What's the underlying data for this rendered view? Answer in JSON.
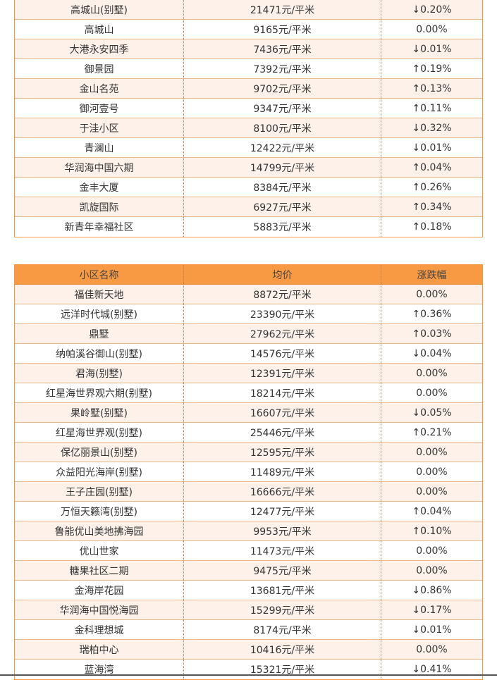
{
  "table1": {
    "rows": [
      {
        "name": "高城山(别墅)",
        "price": "21471元/平米",
        "change": "↓0.20%"
      },
      {
        "name": "高城山",
        "price": "9165元/平米",
        "change": "0.00%"
      },
      {
        "name": "大港永安四季",
        "price": "7436元/平米",
        "change": "↓0.01%"
      },
      {
        "name": "御景园",
        "price": "7392元/平米",
        "change": "↑0.19%"
      },
      {
        "name": "金山名苑",
        "price": "9702元/平米",
        "change": "↑0.13%"
      },
      {
        "name": "御河壹号",
        "price": "9347元/平米",
        "change": "↑0.11%"
      },
      {
        "name": "于洼小区",
        "price": "8100元/平米",
        "change": "↓0.32%"
      },
      {
        "name": "青澜山",
        "price": "12422元/平米",
        "change": "↓0.01%"
      },
      {
        "name": "华润海中国六期",
        "price": "14799元/平米",
        "change": "↑0.04%"
      },
      {
        "name": "金丰大厦",
        "price": "8384元/平米",
        "change": "↑0.26%"
      },
      {
        "name": "凯旋国际",
        "price": "6927元/平米",
        "change": "↑0.34%"
      },
      {
        "name": "新青年幸福社区",
        "price": "5883元/平米",
        "change": "↑0.18%"
      }
    ]
  },
  "table2": {
    "headers": {
      "name": "小区名称",
      "price": "均价",
      "change": "涨跌幅"
    },
    "rows": [
      {
        "name": "福佳新天地",
        "price": "8872元/平米",
        "change": "0.00%"
      },
      {
        "name": "远洋时代城(别墅)",
        "price": "23390元/平米",
        "change": "↑0.36%"
      },
      {
        "name": "鼎墅",
        "price": "27962元/平米",
        "change": "↑0.03%"
      },
      {
        "name": "纳帕溪谷御山(别墅)",
        "price": "14576元/平米",
        "change": "↓0.04%"
      },
      {
        "name": "君海(别墅)",
        "price": "12391元/平米",
        "change": "0.00%"
      },
      {
        "name": "红星海世界观六期(别墅)",
        "price": "18214元/平米",
        "change": "0.00%"
      },
      {
        "name": "果岭墅(别墅)",
        "price": "16607元/平米",
        "change": "↓0.05%"
      },
      {
        "name": "红星海世界观(别墅)",
        "price": "25446元/平米",
        "change": "↑0.21%"
      },
      {
        "name": "保亿丽景山(别墅)",
        "price": "12595元/平米",
        "change": "0.00%"
      },
      {
        "name": "众益阳光海岸(别墅)",
        "price": "11489元/平米",
        "change": "0.00%"
      },
      {
        "name": "王子庄园(别墅)",
        "price": "16666元/平米",
        "change": "0.00%"
      },
      {
        "name": "万恒天籁湾(别墅)",
        "price": "12477元/平米",
        "change": "↑0.04%"
      },
      {
        "name": "鲁能优山美地拂海园",
        "price": "9953元/平米",
        "change": "↑0.10%"
      },
      {
        "name": "优山世家",
        "price": "11473元/平米",
        "change": "0.00%"
      },
      {
        "name": "糖果社区二期",
        "price": "9475元/平米",
        "change": "0.00%"
      },
      {
        "name": "金海岸花园",
        "price": "13681元/平米",
        "change": "↓0.86%"
      },
      {
        "name": "华润海中国悦海园",
        "price": "15299元/平米",
        "change": "↓0.17%"
      },
      {
        "name": "金科理想城",
        "price": "8174元/平米",
        "change": "↓0.01%"
      },
      {
        "name": "瑞柏中心",
        "price": "10416元/平米",
        "change": "0.00%"
      },
      {
        "name": "蓝海湾",
        "price": "15321元/平米",
        "change": "↓0.41%"
      }
    ]
  }
}
